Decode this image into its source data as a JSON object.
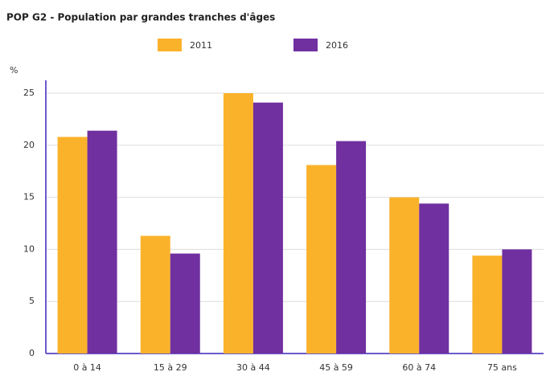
{
  "chart_data": {
    "type": "bar",
    "title": "POP G2 - Population par grandes tranches d'âges",
    "y_label": "%",
    "categories": [
      "0 à 14",
      "15 à 29",
      "30 à 44",
      "45 à 59",
      "60 à 74",
      "75 ans"
    ],
    "series": [
      {
        "name": "2011",
        "color": "#fbb22b",
        "values": [
          20.8,
          11.3,
          25.0,
          18.1,
          15.0,
          9.4
        ]
      },
      {
        "name": "2016",
        "color": "#7030a0",
        "values": [
          21.4,
          9.6,
          24.1,
          20.4,
          14.4,
          10.0
        ]
      }
    ],
    "ylim": [
      0,
      25
    ],
    "yticks": [
      0,
      5,
      10,
      15,
      20,
      25
    ],
    "grid": true,
    "legend": "top"
  }
}
